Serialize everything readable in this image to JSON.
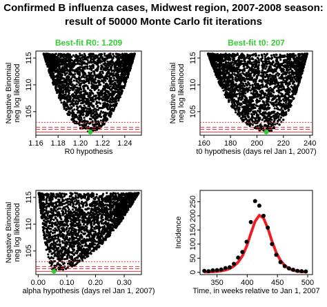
{
  "figure": {
    "title_line1": "Confirmed B influenza cases, Midwest region, 2007-2008 season:",
    "title_line2": "result of 50000 Monte Carlo fit iterations"
  },
  "colors": {
    "points": "#000000",
    "best_fit_text": "#33cc33",
    "best_fit_point": "#33cc33",
    "ref_lines": "#e8323c",
    "model_curve": "#ee1c24"
  },
  "chart_data": [
    {
      "type": "scatter",
      "title": "Best-fit R0: 1.209",
      "xlabel": "R0 hypothesis",
      "ylabel": "Negative Binomial\nneg log likelihood",
      "xlim": [
        1.16,
        1.255
      ],
      "ylim": [
        100.6,
        116.3
      ],
      "xticks": [
        "1.16",
        "1.18",
        "1.20",
        "1.22",
        "1.24"
      ],
      "xtick_values": [
        1.16,
        1.18,
        1.2,
        1.22,
        1.24
      ],
      "yticks": [
        "105",
        "110",
        "115"
      ],
      "ytick_values": [
        105,
        110,
        115
      ],
      "cloud": {
        "min_x": 1.209,
        "min_y": 101.2,
        "top_y": 115.8,
        "left_x": 1.167,
        "right_x": 1.249,
        "shape": 0.55
      },
      "best_fit": {
        "x": 1.209,
        "y": 101.2
      },
      "hlines": [
        {
          "y": 101.2,
          "style": "solid"
        },
        {
          "y": 101.7,
          "style": "dashed"
        },
        {
          "y": 102.1,
          "style": "dashed"
        },
        {
          "y": 103.0,
          "style": "dotted"
        }
      ]
    },
    {
      "type": "scatter",
      "title": "Best-fit t0: 207",
      "xlabel": "t0 hypothesis (days rel Jan 1, 2007)",
      "ylabel": "Negative Binomial\nneg log likelihood",
      "xlim": [
        157,
        242
      ],
      "ylim": [
        100.6,
        116.3
      ],
      "xticks": [
        "160",
        "180",
        "200",
        "220",
        "240"
      ],
      "xtick_values": [
        160,
        180,
        200,
        220,
        240
      ],
      "yticks": [
        "105",
        "110",
        "115"
      ],
      "ytick_values": [
        105,
        110,
        115
      ],
      "cloud": {
        "min_x": 207,
        "min_y": 101.2,
        "top_y": 115.8,
        "left_x": 163,
        "right_x": 238,
        "shape": 0.65
      },
      "best_fit": {
        "x": 207,
        "y": 101.2
      },
      "hlines": [
        {
          "y": 101.2,
          "style": "solid"
        },
        {
          "y": 101.7,
          "style": "dashed"
        },
        {
          "y": 102.1,
          "style": "dashed"
        },
        {
          "y": 103.0,
          "style": "dotted"
        }
      ]
    },
    {
      "type": "scatter",
      "title": "",
      "xlabel": "alpha hypothesis (days rel Jan 1, 2007)",
      "ylabel": "Negative Binomial\nneg log likelihood",
      "xlim": [
        -0.008,
        0.36
      ],
      "ylim": [
        100.6,
        116.3
      ],
      "xticks": [
        "0.00",
        "0.10",
        "0.20",
        "0.30"
      ],
      "xtick_values": [
        0.0,
        0.1,
        0.2,
        0.3
      ],
      "yticks": [
        "105",
        "110",
        "115"
      ],
      "ytick_values": [
        105,
        110,
        115
      ],
      "cloud": {
        "min_x": 0.055,
        "min_y": 101.2,
        "top_y": 115.8,
        "left_x": 0.002,
        "right_x": 0.35,
        "shape": 0.35
      },
      "best_fit": {
        "x": 0.055,
        "y": 101.2
      },
      "hlines": [
        {
          "y": 101.2,
          "style": "solid"
        },
        {
          "y": 101.7,
          "style": "dashed"
        },
        {
          "y": 102.1,
          "style": "dashed"
        },
        {
          "y": 103.0,
          "style": "dotted"
        }
      ]
    },
    {
      "type": "line",
      "title": "",
      "xlabel": "Time, in weeks relative to Jan 1, 2007",
      "ylabel": "Incidence",
      "xlim": [
        322,
        508
      ],
      "ylim": [
        -8,
        290
      ],
      "xticks": [
        "350",
        "400",
        "450",
        "500"
      ],
      "xtick_values": [
        350,
        400,
        450,
        500
      ],
      "yticks": [
        "0",
        "50",
        "100",
        "150",
        "200",
        "250"
      ],
      "ytick_values": [
        0,
        50,
        100,
        150,
        200,
        250
      ],
      "observed": {
        "x": [
          329,
          336,
          343,
          350,
          357,
          364,
          371,
          378,
          385,
          392,
          399,
          406,
          413,
          420,
          427,
          434,
          441,
          448,
          455,
          462,
          469,
          476,
          483,
          490,
          497
        ],
        "y": [
          5,
          4,
          7,
          8,
          10,
          15,
          18,
          30,
          52,
          72,
          108,
          178,
          252,
          236,
          200,
          158,
          100,
          62,
          36,
          22,
          14,
          9,
          5,
          4,
          3
        ]
      },
      "model": {
        "x": [
          329,
          336,
          343,
          350,
          357,
          364,
          371,
          378,
          385,
          392,
          399,
          406,
          413,
          420,
          427,
          434,
          441,
          448,
          455,
          462,
          469,
          476,
          483,
          490,
          497
        ],
        "y": [
          1,
          1,
          2,
          3,
          5,
          8,
          13,
          22,
          36,
          58,
          92,
          137,
          180,
          202,
          192,
          156,
          110,
          70,
          42,
          24,
          13,
          7,
          4,
          2,
          1
        ]
      }
    }
  ]
}
